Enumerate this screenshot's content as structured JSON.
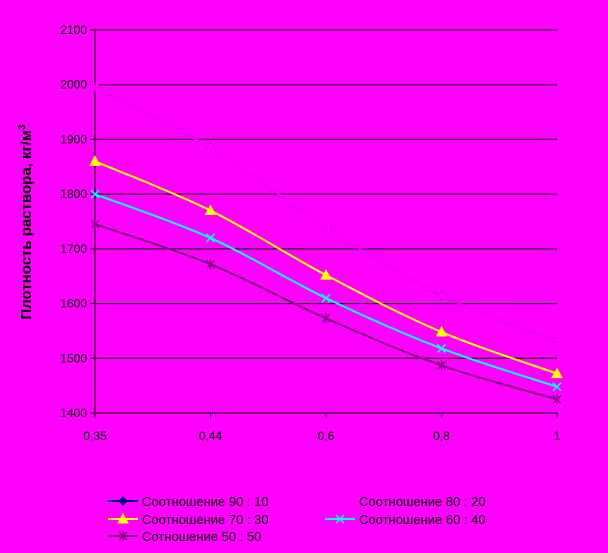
{
  "chart_data": {
    "type": "line",
    "title": "",
    "xlabel": "",
    "ylabel": "Плотность раствора, кг/м",
    "ylabel_superscript": "3",
    "categories": [
      "0,35",
      "0,44",
      "0,6",
      "0,8",
      "1"
    ],
    "y_ticks": [
      "1400",
      "1500",
      "1600",
      "1700",
      "1800",
      "1900",
      "2000",
      "2100"
    ],
    "ylim": [
      1400,
      2100
    ],
    "grid": "horizontal",
    "legend_position": "bottom",
    "series": [
      {
        "name": "Соотношение 90 : 10",
        "color": "#000080",
        "marker": "diamond",
        "values": [
          1995,
          1885,
          1740,
          1615,
          1530
        ]
      },
      {
        "name": "Соотношение 80 : 20",
        "color": "#FF00FF",
        "marker": "square",
        "values": [
          1995,
          1885,
          1740,
          1615,
          1530
        ]
      },
      {
        "name": "Соотношение  70 : 30",
        "color": "#FFFF00",
        "marker": "triangle",
        "values": [
          1860,
          1770,
          1652,
          1548,
          1472
        ]
      },
      {
        "name": "Соотношение 60 : 40",
        "color": "#00FFFF",
        "marker": "x",
        "values": [
          1800,
          1720,
          1610,
          1518,
          1448
        ]
      },
      {
        "name": "Сотношение 50 : 50",
        "color": "#800080",
        "marker": "star",
        "values": [
          1745,
          1672,
          1573,
          1487,
          1425
        ]
      }
    ]
  }
}
